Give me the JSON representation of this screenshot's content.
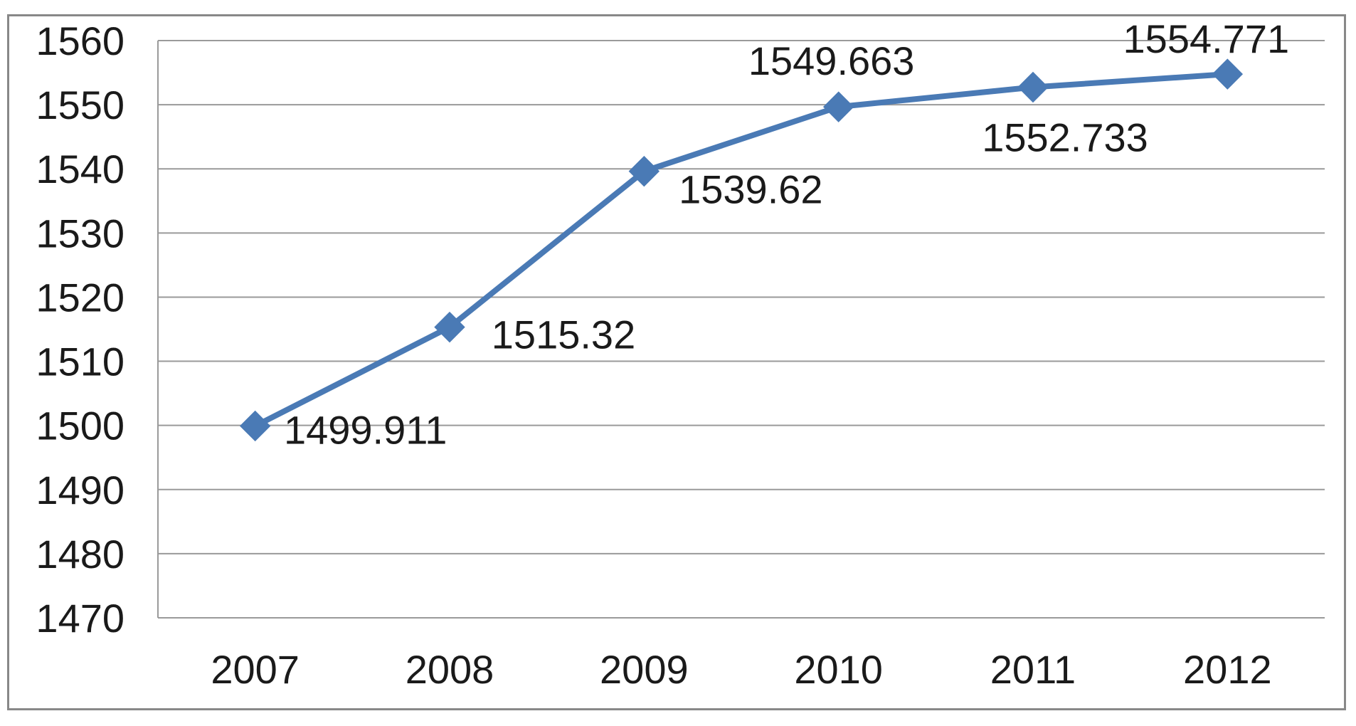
{
  "chart_data": {
    "type": "line",
    "categories": [
      "2007",
      "2008",
      "2009",
      "2010",
      "2011",
      "2012"
    ],
    "series": [
      {
        "values": [
          1499.911,
          1515.32,
          1539.62,
          1549.663,
          1552.733,
          1554.771
        ],
        "data_labels": [
          "1499.911",
          "1515.32",
          "1539.62",
          "1549.663",
          "1552.733",
          "1554.771"
        ],
        "color": "#4a7ab5",
        "marker": "diamond"
      }
    ],
    "ylim": [
      1470,
      1560
    ],
    "ystep": 10,
    "yticks": [
      "1470",
      "1480",
      "1490",
      "1500",
      "1510",
      "1520",
      "1530",
      "1540",
      "1550",
      "1560"
    ],
    "grid": true,
    "legend": "none",
    "title": "",
    "xlabel": "",
    "ylabel": "",
    "colors": {
      "grid": "#9a9a9a",
      "axis": "#9a9a9a",
      "frame": "#888888"
    }
  }
}
